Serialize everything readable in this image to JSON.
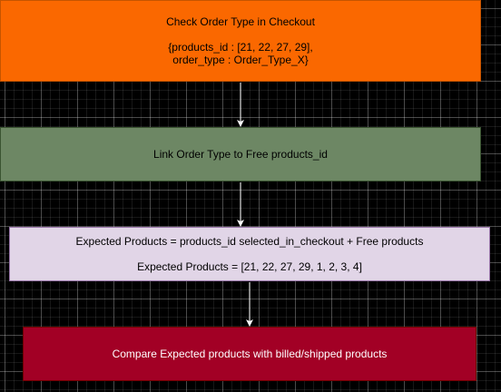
{
  "diagram": {
    "boxes": [
      {
        "id": "check-order-type",
        "title": "Check Order Type in Checkout",
        "lines": [
          "{products_id : [21, 22, 27, 29],",
          "order_type : Order_Type_X}"
        ],
        "fill": "#fa6800",
        "stroke": "#c55400"
      },
      {
        "id": "link-order-type",
        "title": "Link Order Type to Free products_id",
        "fill": "#6d8764",
        "stroke": "#3a5431"
      },
      {
        "id": "expected-products",
        "title": "Expected Products = products_id selected_in_checkout + Free products",
        "lines": [
          "Expected Products = [21, 22, 27, 29, 1, 2, 3, 4]"
        ],
        "fill": "#e1d5e7",
        "stroke": "#9673a6"
      },
      {
        "id": "compare-products",
        "title": "Compare Expected products with billed/shipped products",
        "fill": "#a20025",
        "stroke": "#6f0000"
      }
    ],
    "edges": [
      {
        "from": "check-order-type",
        "to": "link-order-type"
      },
      {
        "from": "link-order-type",
        "to": "expected-products"
      },
      {
        "from": "expected-products",
        "to": "compare-products"
      }
    ],
    "colors": {
      "background": "#000000",
      "connector": "#ffffff"
    }
  }
}
